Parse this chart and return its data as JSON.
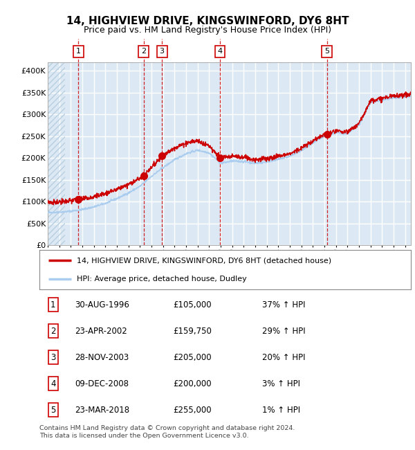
{
  "title": "14, HIGHVIEW DRIVE, KINGSWINFORD, DY6 8HT",
  "subtitle": "Price paid vs. HM Land Registry's House Price Index (HPI)",
  "bg_color": "#dce9f5",
  "grid_color": "#ffffff",
  "red_line_color": "#cc0000",
  "blue_line_color": "#aaccee",
  "sale_marker_color": "#cc0000",
  "dashed_line_color": "#cc0000",
  "ylim": [
    0,
    420000
  ],
  "yticks": [
    0,
    50000,
    100000,
    150000,
    200000,
    250000,
    300000,
    350000,
    400000
  ],
  "ytick_labels": [
    "£0",
    "£50K",
    "£100K",
    "£150K",
    "£200K",
    "£250K",
    "£300K",
    "£350K",
    "£400K"
  ],
  "xlim_start": 1994.0,
  "xlim_end": 2025.5,
  "xticks": [
    1994,
    1995,
    1996,
    1997,
    1998,
    1999,
    2000,
    2001,
    2002,
    2003,
    2004,
    2005,
    2006,
    2007,
    2008,
    2009,
    2010,
    2011,
    2012,
    2013,
    2014,
    2015,
    2016,
    2017,
    2018,
    2019,
    2020,
    2021,
    2022,
    2023,
    2024,
    2025
  ],
  "hatch_end_year": 1995.5,
  "sales": [
    {
      "num": 1,
      "date": "30-AUG-1996",
      "year": 1996.66,
      "price": 105000,
      "pct": "37%",
      "dir": "↑"
    },
    {
      "num": 2,
      "date": "23-APR-2002",
      "year": 2002.31,
      "price": 159750,
      "pct": "29%",
      "dir": "↑"
    },
    {
      "num": 3,
      "date": "28-NOV-2003",
      "year": 2003.91,
      "price": 205000,
      "pct": "20%",
      "dir": "↑"
    },
    {
      "num": 4,
      "date": "09-DEC-2008",
      "year": 2008.94,
      "price": 200000,
      "pct": "3%",
      "dir": "↑"
    },
    {
      "num": 5,
      "date": "23-MAR-2018",
      "year": 2018.22,
      "price": 255000,
      "pct": "1%",
      "dir": "↑"
    }
  ],
  "legend_line1": "14, HIGHVIEW DRIVE, KINGSWINFORD, DY6 8HT (detached house)",
  "legend_line2": "HPI: Average price, detached house, Dudley",
  "footer": "Contains HM Land Registry data © Crown copyright and database right 2024.\nThis data is licensed under the Open Government Licence v3.0.",
  "table_rows": [
    [
      "1",
      "30-AUG-1996",
      "£105,000",
      "37% ↑ HPI"
    ],
    [
      "2",
      "23-APR-2002",
      "£159,750",
      "29% ↑ HPI"
    ],
    [
      "3",
      "28-NOV-2003",
      "£205,000",
      "20% ↑ HPI"
    ],
    [
      "4",
      "09-DEC-2008",
      "£200,000",
      "3% ↑ HPI"
    ],
    [
      "5",
      "23-MAR-2018",
      "£255,000",
      "1% ↑ HPI"
    ]
  ]
}
